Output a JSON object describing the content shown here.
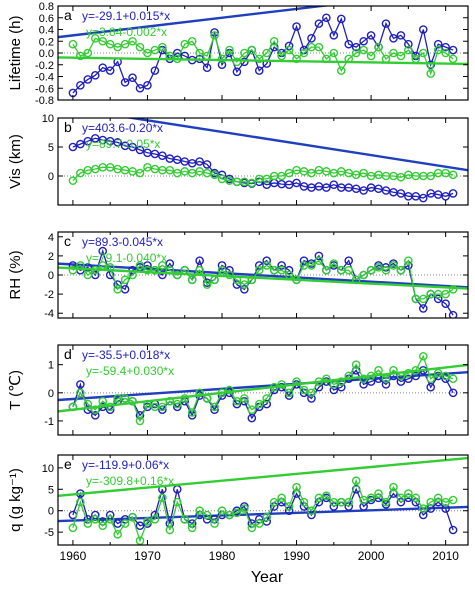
{
  "figure": {
    "xlabel": "Year",
    "xticks": [
      1960,
      1970,
      1980,
      1990,
      2000,
      2010
    ],
    "colors": {
      "blue": "#1f1fbf",
      "green": "#33cc33",
      "trend_blue": "#1f3fbf",
      "frame": "#000000",
      "zero_line": "#888888"
    }
  },
  "chart_data": [
    {
      "type": "line",
      "panel": "a",
      "ylabel": "Lifetime (h)",
      "ylim": [
        -0.8,
        0.8
      ],
      "yticks": [
        -0.8,
        -0.6,
        -0.4,
        -0.2,
        0.0,
        0.2,
        0.4,
        0.6,
        0.8
      ],
      "ytick_labels": [
        "-0.8",
        "-0.6",
        "-0.4",
        "-0.2",
        "0.0",
        "0.2",
        "0.4",
        "0.6",
        "0.8"
      ],
      "x_start": 1960,
      "series": [
        {
          "color": "blue",
          "equation": "y=-29.1+0.015*x",
          "intercept": -29.1,
          "slope": 0.015,
          "values": [
            -0.68,
            -0.55,
            -0.45,
            -0.38,
            -0.25,
            -0.3,
            -0.15,
            -0.5,
            -0.42,
            -0.6,
            -0.55,
            -0.3,
            0.05,
            -0.1,
            0.0,
            -0.05,
            -0.12,
            -0.1,
            -0.25,
            0.35,
            -0.2,
            0.0,
            -0.32,
            -0.15,
            0.05,
            -0.3,
            -0.18,
            0.1,
            0.0,
            0.12,
            0.45,
            0.05,
            0.25,
            0.5,
            0.6,
            0.3,
            0.58,
            0.15,
            0.1,
            0.2,
            0.3,
            0.1,
            0.5,
            0.25,
            0.3,
            0.15,
            -0.05,
            0.4,
            -0.2,
            0.15,
            0.1,
            0.05
          ]
        },
        {
          "color": "green",
          "equation": "y=3.84-0.002*x",
          "intercept": 3.84,
          "slope": -0.002,
          "values": [
            0.15,
            -0.05,
            0.0,
            0.25,
            0.2,
            0.15,
            0.1,
            0.15,
            0.2,
            0.1,
            0.0,
            0.05,
            0.1,
            -0.05,
            -0.1,
            0.15,
            0.2,
            0.0,
            -0.05,
            0.3,
            -0.1,
            0.05,
            -0.15,
            0.0,
            0.05,
            -0.1,
            0.0,
            0.2,
            -0.05,
            0.05,
            -0.1,
            0.0,
            0.1,
            0.1,
            -0.1,
            0.0,
            -0.3,
            -0.1,
            0.0,
            0.05,
            -0.05,
            0.1,
            -0.1,
            0.0,
            -0.05,
            0.05,
            -0.1,
            0.0,
            -0.35,
            0.05,
            0.0,
            -0.1
          ]
        }
      ]
    },
    {
      "type": "line",
      "panel": "b",
      "ylabel": "Vis (km)",
      "ylim": [
        -5,
        10
      ],
      "yticks": [
        0,
        5,
        10
      ],
      "ytick_labels": [
        "0",
        "5",
        "10"
      ],
      "x_start": 1960,
      "series": [
        {
          "color": "blue",
          "equation": "y=403.6-0.20*x",
          "intercept": 403.6,
          "slope": -0.2,
          "values": [
            5.0,
            5.5,
            6.0,
            6.5,
            6.2,
            6.0,
            5.8,
            5.2,
            5.0,
            4.5,
            4.0,
            3.8,
            3.5,
            3.0,
            2.8,
            2.5,
            2.2,
            2.5,
            2.0,
            0.5,
            0.2,
            -0.5,
            -1.0,
            -1.2,
            -1.3,
            -1.0,
            -1.5,
            -1.2,
            -1.4,
            -1.5,
            -1.2,
            -1.8,
            -2.0,
            -1.8,
            -2.0,
            -1.5,
            -2.0,
            -2.0,
            -2.2,
            -2.5,
            -2.0,
            -2.2,
            -2.5,
            -2.8,
            -3.0,
            -3.5,
            -3.5,
            -3.8,
            -3.0,
            -3.2,
            -3.5,
            -3.0
          ]
        },
        {
          "color": "green",
          "equation": "y=89.7-0.05*x",
          "intercept": 89.7,
          "slope": -0.05,
          "values": [
            -0.8,
            0.5,
            1.0,
            1.2,
            1.5,
            1.5,
            1.2,
            1.0,
            0.8,
            0.5,
            1.5,
            1.2,
            1.0,
            1.0,
            0.5,
            0.8,
            0.5,
            0.8,
            0.5,
            0.2,
            -0.5,
            -0.8,
            -1.0,
            -1.0,
            -1.2,
            -0.5,
            -0.5,
            0.0,
            0.0,
            0.5,
            1.0,
            0.8,
            0.5,
            1.0,
            0.8,
            0.5,
            0.8,
            0.5,
            0.2,
            0.5,
            0.0,
            0.2,
            0.0,
            0.0,
            -0.2,
            0.2,
            0.0,
            0.0,
            0.0,
            0.5,
            0.5,
            0.2
          ]
        }
      ]
    },
    {
      "type": "line",
      "panel": "c",
      "ylabel": "RH (%)",
      "ylim": [
        -4.5,
        4.5
      ],
      "yticks": [
        -4,
        -2,
        0,
        2,
        4
      ],
      "ytick_labels": [
        "-4",
        "-2",
        "0",
        "2",
        "4"
      ],
      "x_start": 1960,
      "series": [
        {
          "color": "blue",
          "equation": "y=89.3-0.045*x",
          "intercept": 89.3,
          "slope": -0.045,
          "values": [
            1.0,
            0.5,
            0.8,
            0.0,
            2.5,
            0.0,
            -1.0,
            -1.5,
            0.5,
            0.8,
            1.0,
            0.5,
            0.0,
            1.2,
            0.0,
            0.5,
            -0.5,
            1.5,
            -0.8,
            -0.5,
            1.0,
            0.5,
            -1.0,
            -1.5,
            -0.5,
            1.0,
            1.5,
            0.5,
            1.0,
            0.5,
            -0.5,
            1.5,
            1.2,
            2.0,
            0.5,
            1.0,
            0.5,
            1.5,
            -0.5,
            0.0,
            0.5,
            1.0,
            0.8,
            1.2,
            0.5,
            1.0,
            -2.5,
            -3.5,
            -2.0,
            -2.5,
            -3.0,
            -4.2
          ]
        },
        {
          "color": "green",
          "equation": "y=79.1-0.040*x",
          "intercept": 79.1,
          "slope": -0.04,
          "values": [
            0.5,
            1.0,
            0.0,
            0.5,
            1.0,
            0.8,
            -1.5,
            -0.5,
            0.0,
            1.0,
            0.5,
            0.5,
            1.0,
            0.5,
            0.0,
            0.5,
            -0.5,
            0.5,
            -1.0,
            -0.5,
            0.5,
            0.0,
            -0.5,
            -1.0,
            -0.5,
            0.5,
            1.0,
            0.5,
            0.5,
            0.0,
            -0.5,
            1.0,
            1.0,
            1.5,
            0.5,
            1.2,
            0.5,
            0.5,
            -0.5,
            0.0,
            0.5,
            0.8,
            0.5,
            1.0,
            0.5,
            1.5,
            -2.5,
            -2.5,
            -2.0,
            -2.0,
            -2.0,
            -1.5
          ]
        }
      ]
    },
    {
      "type": "line",
      "panel": "d",
      "ylabel": "T (℃)",
      "ylim": [
        -1.5,
        1.7
      ],
      "yticks": [
        -1,
        0,
        1
      ],
      "ytick_labels": [
        "-1",
        "0",
        "1"
      ],
      "x_start": 1960,
      "series": [
        {
          "color": "blue",
          "equation": "y=-35.5+0.018*x",
          "intercept": -35.5,
          "slope": 0.018,
          "values": [
            -0.5,
            0.3,
            -0.6,
            -0.8,
            -0.5,
            -0.6,
            -0.3,
            -0.2,
            -0.3,
            -0.8,
            -0.5,
            -0.4,
            -0.6,
            -0.3,
            -0.5,
            -0.3,
            -0.8,
            -0.1,
            -0.2,
            -0.6,
            -0.1,
            0.0,
            -0.4,
            -0.3,
            -0.9,
            -0.5,
            -0.4,
            0.1,
            0.2,
            -0.1,
            0.3,
            0.0,
            -0.2,
            0.2,
            0.4,
            0.1,
            0.2,
            0.5,
            0.8,
            0.3,
            0.4,
            0.5,
            0.3,
            0.6,
            0.4,
            0.5,
            0.6,
            0.8,
            0.2,
            0.6,
            0.5,
            0.0
          ]
        },
        {
          "color": "green",
          "equation": "y=-59.4+0.030*x",
          "intercept": -59.4,
          "slope": 0.03,
          "values": [
            -0.5,
            0.0,
            -0.4,
            -0.6,
            -0.3,
            -0.5,
            -0.2,
            -0.2,
            -0.3,
            -1.0,
            -0.4,
            -0.5,
            -0.5,
            -0.3,
            -0.4,
            -0.2,
            -0.7,
            0.0,
            -0.2,
            -0.5,
            0.0,
            0.1,
            -0.3,
            -0.2,
            -0.6,
            -0.4,
            -0.2,
            0.2,
            0.3,
            0.0,
            0.4,
            0.1,
            0.0,
            0.4,
            0.5,
            0.3,
            0.4,
            0.6,
            1.0,
            0.5,
            0.6,
            0.8,
            0.5,
            0.8,
            0.6,
            0.7,
            0.8,
            1.3,
            0.5,
            0.7,
            0.6,
            0.5
          ]
        }
      ]
    },
    {
      "type": "line",
      "panel": "e",
      "ylabel": "q (g kg⁻¹)",
      "ylim": [
        -8,
        13
      ],
      "yticks": [
        -5,
        0,
        5,
        10
      ],
      "ytick_labels": [
        "-5",
        "0",
        "5",
        "10"
      ],
      "x_start": 1960,
      "series": [
        {
          "color": "blue",
          "equation": "y=-119.9+0.06*x",
          "intercept": -119.9,
          "slope": 0.06,
          "values": [
            -1.0,
            4.0,
            -2.0,
            -1.0,
            -2.5,
            -1.0,
            -3.0,
            -2.0,
            -1.5,
            -3.5,
            -3.0,
            -1.0,
            5.0,
            -3.0,
            5.0,
            -2.0,
            -3.0,
            -1.0,
            -2.0,
            -2.0,
            -1.0,
            -1.0,
            0.0,
            1.0,
            -3.0,
            -2.0,
            -2.5,
            1.0,
            2.0,
            0.0,
            4.0,
            1.0,
            -1.0,
            2.0,
            3.0,
            1.0,
            2.0,
            1.0,
            5.0,
            1.0,
            2.5,
            3.0,
            1.5,
            4.0,
            2.0,
            3.0,
            2.0,
            -1.0,
            0.5,
            2.0,
            0.5,
            -4.5
          ]
        },
        {
          "color": "green",
          "equation": "y=-309.8+0.16*x",
          "intercept": -309.8,
          "slope": 0.16,
          "values": [
            -4.0,
            2.0,
            -3.0,
            -2.0,
            -3.5,
            -2.0,
            -5.5,
            -3.0,
            -1.5,
            -7.0,
            -2.5,
            -2.0,
            3.0,
            -4.5,
            2.0,
            -2.0,
            -4.0,
            0.0,
            -1.0,
            -3.0,
            0.0,
            -1.0,
            -0.5,
            0.5,
            -4.0,
            -3.0,
            -1.5,
            2.0,
            3.0,
            1.0,
            5.5,
            2.0,
            0.0,
            3.0,
            3.5,
            2.0,
            2.0,
            2.0,
            7.0,
            2.5,
            3.0,
            4.0,
            2.0,
            5.5,
            3.0,
            4.0,
            3.0,
            0.5,
            2.0,
            3.0,
            2.0,
            2.5
          ]
        }
      ]
    }
  ]
}
